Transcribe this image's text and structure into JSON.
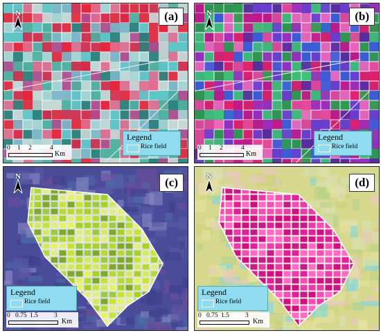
{
  "panels": [
    {
      "id": "pa",
      "label": "(a)",
      "colors": [
        "#e8253a",
        "#d62a4a",
        "#5ec4c8",
        "#a9d6d6",
        "#7bb7c9",
        "#c6d9d7",
        "#e36b8f",
        "#4fb0a0",
        "#b14a8f",
        "#2a7e7a"
      ],
      "bg": "#7fbfc2",
      "field_outline": "#ffffff"
    },
    {
      "id": "pb",
      "label": "(b)",
      "colors": [
        "#e01f6a",
        "#c21a8a",
        "#6a3fd0",
        "#3a5fd8",
        "#2d9d4e",
        "#9b2fbf",
        "#e64a9a",
        "#3fc37a",
        "#5a2c9e",
        "#f06abf"
      ],
      "bg": "#4a3f9a",
      "field_outline": "#ffffff"
    },
    {
      "id": "pc",
      "label": "(c)",
      "colors": [
        "#c7e23a",
        "#a8d02b",
        "#e5f06b",
        "#7fa830",
        "#d3e86a",
        "#9cc94a",
        "#b6d83c",
        "#e0ec8c"
      ],
      "bg": "#4a4c9a",
      "field_outline": "#ffffff"
    },
    {
      "id": "pd",
      "label": "(d)",
      "colors": [
        "#e0209a",
        "#f24fb4",
        "#d0107e",
        "#ff6ac4",
        "#c41c86",
        "#e63ea8"
      ],
      "bg": "#d6d88e",
      "field_outline": "#ffffff"
    }
  ],
  "legend": {
    "title": "Legend",
    "item": "Rice field"
  },
  "north": "N",
  "scale_top": {
    "ticks": [
      "0",
      "1",
      "2",
      "4"
    ],
    "unit": "Km"
  },
  "scale_bottom": {
    "ticks": [
      "0",
      "0.75",
      "1.5",
      "3"
    ],
    "unit": "Km"
  }
}
